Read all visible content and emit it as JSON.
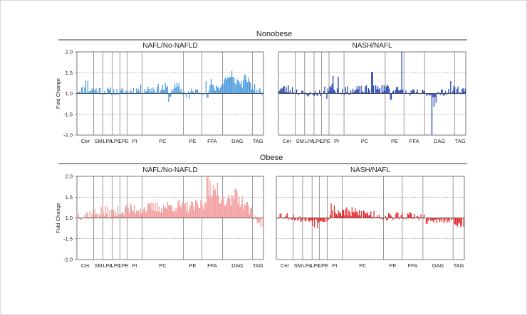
{
  "sections": [
    {
      "title": "Nonobese",
      "panels": [
        {
          "title": "NAFL/No-NAFLD",
          "color": "#4b9be0",
          "ylabel": "Fold Change"
        },
        {
          "title": "NASH/NAFL",
          "color": "#1f3eb0",
          "ylabel": ""
        }
      ]
    },
    {
      "title": "Obese",
      "panels": [
        {
          "title": "NAFL/No-NAFLD",
          "color": "#f29a9a",
          "ylabel": "Fold Change"
        },
        {
          "title": "NASH/NAFL",
          "color": "#e8262b",
          "ylabel": ""
        }
      ]
    }
  ],
  "chart_data": [
    {
      "type": "bar",
      "title": "NAFL/No-NAFLD",
      "section": "Nonobese",
      "ylabel": "Fold Change",
      "ylim": [
        -2.0,
        2.0
      ],
      "yticks": [
        "2.0",
        "1.5",
        "1.0",
        "-1.5",
        "-2.0"
      ],
      "baseline": 1.0,
      "groups": [
        "Cer",
        "SM",
        "LPA",
        "LPC",
        "LPE",
        "PI",
        "PC",
        "PE",
        "FFA",
        "DAG",
        "TAG"
      ],
      "group_bounds": [
        0,
        0.09,
        0.14,
        0.19,
        0.23,
        0.27,
        0.35,
        0.57,
        0.67,
        0.78,
        0.94,
        1
      ],
      "grid": true,
      "seed": 11,
      "profile": [
        [
          0,
          1.08
        ],
        [
          0.09,
          1.1
        ],
        [
          0.14,
          1.05
        ],
        [
          0.19,
          1.03
        ],
        [
          0.23,
          1.02
        ],
        [
          0.27,
          1.05
        ],
        [
          0.35,
          1.1
        ],
        [
          0.55,
          1.15
        ],
        [
          0.57,
          1.0
        ],
        [
          0.67,
          1.05
        ],
        [
          0.78,
          1.2
        ],
        [
          0.8,
          1.4
        ],
        [
          0.94,
          1.15
        ],
        [
          1,
          0.98
        ]
      ],
      "amp": 0.12,
      "spikes": [
        [
          0.047,
          1.32
        ],
        [
          0.06,
          1.3
        ],
        [
          0.49,
          0.6
        ],
        [
          0.5,
          0.85
        ],
        [
          0.585,
          0.8
        ],
        [
          0.605,
          0.75
        ],
        [
          0.7,
          0.8
        ],
        [
          0.69,
          1.3
        ],
        [
          0.72,
          1.35
        ],
        [
          0.83,
          1.55
        ],
        [
          0.9,
          1.45
        ],
        [
          0.92,
          1.38
        ]
      ]
    },
    {
      "type": "bar",
      "title": "NASH/NAFL",
      "section": "Nonobese",
      "ylabel": "",
      "ylim": [
        -2.0,
        2.0
      ],
      "yticks": [],
      "baseline": 1.0,
      "groups": [
        "Cer",
        "SM",
        "LPA",
        "LPC",
        "LPE",
        "PI",
        "PC",
        "PE",
        "FFA",
        "DAG",
        "TAG"
      ],
      "group_bounds": [
        0,
        0.09,
        0.14,
        0.19,
        0.23,
        0.27,
        0.35,
        0.57,
        0.67,
        0.78,
        0.94,
        1
      ],
      "grid": true,
      "seed": 23,
      "profile": [
        [
          0,
          1.12
        ],
        [
          0.09,
          1.08
        ],
        [
          0.14,
          0.95
        ],
        [
          0.19,
          0.97
        ],
        [
          0.23,
          0.98
        ],
        [
          0.27,
          1.15
        ],
        [
          0.35,
          1.05
        ],
        [
          0.55,
          1.1
        ],
        [
          0.57,
          1.18
        ],
        [
          0.67,
          1.0
        ],
        [
          0.78,
          1.0
        ],
        [
          0.82,
          0.92
        ],
        [
          0.94,
          1.1
        ],
        [
          1,
          1.05
        ]
      ],
      "amp": 0.12,
      "spikes": [
        [
          0.26,
          0.75
        ],
        [
          0.29,
          1.42
        ],
        [
          0.32,
          1.4
        ],
        [
          0.5,
          1.52
        ],
        [
          0.6,
          0.7
        ],
        [
          0.66,
          2.0
        ],
        [
          0.82,
          -2.0
        ],
        [
          0.83,
          0.35
        ],
        [
          0.84,
          0.55
        ],
        [
          0.92,
          1.3
        ]
      ]
    },
    {
      "type": "bar",
      "title": "NAFL/No-NAFLD",
      "section": "Obese",
      "ylabel": "Fold Change",
      "ylim": [
        -2.0,
        2.0
      ],
      "yticks": [
        "2.0",
        "1.5",
        "1.0",
        "-1.5",
        "-2.0"
      ],
      "baseline": 1.0,
      "groups": [
        "Cer",
        "SM",
        "LPA",
        "LPC",
        "LPE",
        "PI",
        "PC",
        "PE",
        "FFA",
        "DAG",
        "TAG"
      ],
      "group_bounds": [
        0,
        0.09,
        0.14,
        0.19,
        0.23,
        0.27,
        0.35,
        0.57,
        0.67,
        0.78,
        0.94,
        1
      ],
      "grid": true,
      "seed": 37,
      "profile": [
        [
          0,
          1.05
        ],
        [
          0.09,
          1.1
        ],
        [
          0.14,
          1.15
        ],
        [
          0.19,
          1.1
        ],
        [
          0.23,
          1.15
        ],
        [
          0.27,
          1.2
        ],
        [
          0.35,
          1.22
        ],
        [
          0.55,
          1.3
        ],
        [
          0.57,
          1.25
        ],
        [
          0.67,
          1.3
        ],
        [
          0.7,
          1.3
        ],
        [
          0.71,
          1.65
        ],
        [
          0.78,
          1.45
        ],
        [
          0.88,
          1.4
        ],
        [
          0.94,
          1.15
        ],
        [
          1,
          0.5
        ]
      ],
      "amp": 0.15,
      "spikes": [
        [
          0.7,
          2.0
        ],
        [
          0.715,
          1.9
        ],
        [
          0.73,
          1.8
        ],
        [
          0.755,
          1.85
        ],
        [
          0.85,
          1.7
        ],
        [
          0.86,
          1.65
        ],
        [
          0.99,
          -1.0
        ]
      ]
    },
    {
      "type": "bar",
      "title": "NASH/NAFL",
      "section": "Obese",
      "ylabel": "",
      "ylim": [
        -2.0,
        2.0
      ],
      "yticks": [],
      "baseline": 1.0,
      "groups": [
        "Cer",
        "SM",
        "LPA",
        "LPC",
        "LPE",
        "PI",
        "PC",
        "PE",
        "FFA",
        "DAG",
        "TAG"
      ],
      "group_bounds": [
        0,
        0.09,
        0.14,
        0.19,
        0.23,
        0.27,
        0.35,
        0.57,
        0.67,
        0.78,
        0.94,
        1
      ],
      "grid": true,
      "seed": 53,
      "profile": [
        [
          0,
          1.08
        ],
        [
          0.09,
          1.0
        ],
        [
          0.14,
          0.9
        ],
        [
          0.19,
          0.88
        ],
        [
          0.23,
          0.9
        ],
        [
          0.27,
          0.92
        ],
        [
          0.3,
          1.1
        ],
        [
          0.35,
          1.15
        ],
        [
          0.55,
          1.08
        ],
        [
          0.57,
          0.98
        ],
        [
          0.67,
          1.05
        ],
        [
          0.78,
          1.0
        ],
        [
          0.82,
          0.85
        ],
        [
          0.94,
          0.85
        ],
        [
          1,
          0.5
        ]
      ],
      "amp": 0.13,
      "spikes": [
        [
          0.19,
          0.6
        ],
        [
          0.205,
          0.55
        ],
        [
          0.22,
          0.5
        ],
        [
          0.29,
          1.35
        ],
        [
          0.31,
          1.3
        ],
        [
          0.8,
          0.72
        ],
        [
          0.99,
          -1.0
        ]
      ]
    }
  ]
}
